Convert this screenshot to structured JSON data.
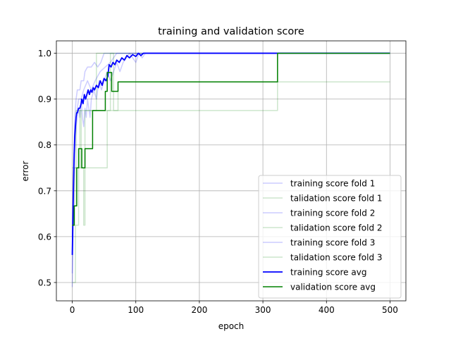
{
  "chart_data": {
    "type": "line",
    "title": "training and validation score",
    "xlabel": "epoch",
    "ylabel": "error",
    "xlim": [
      -25,
      525
    ],
    "ylim": [
      0.46,
      1.027
    ],
    "xticks": [
      0,
      100,
      200,
      300,
      400,
      500
    ],
    "yticks": [
      0.5,
      0.6,
      0.7,
      0.8,
      0.9,
      1.0
    ],
    "xtick_labels": [
      "0",
      "100",
      "200",
      "300",
      "400",
      "500"
    ],
    "ytick_labels": [
      "0.5",
      "0.6",
      "0.7",
      "0.8",
      "0.9",
      "1.0"
    ],
    "grid": true,
    "legend_position": "lower right",
    "series": [
      {
        "name": "training score fold 1",
        "color": "#0000ff",
        "alpha": 0.2,
        "linewidth": 1.5,
        "points": [
          [
            0,
            0.49
          ],
          [
            2,
            0.66
          ],
          [
            4,
            0.78
          ],
          [
            6,
            0.84
          ],
          [
            8,
            0.86
          ],
          [
            10,
            0.88
          ],
          [
            12,
            0.86
          ],
          [
            14,
            0.9
          ],
          [
            16,
            0.86
          ],
          [
            18,
            0.84
          ],
          [
            20,
            0.88
          ],
          [
            22,
            0.86
          ],
          [
            24,
            0.9
          ],
          [
            26,
            0.88
          ],
          [
            28,
            0.86
          ],
          [
            30,
            0.9
          ],
          [
            34,
            0.92
          ],
          [
            38,
            0.9
          ],
          [
            42,
            0.94
          ],
          [
            46,
            0.92
          ],
          [
            50,
            0.94
          ],
          [
            55,
            0.96
          ],
          [
            60,
            0.94
          ],
          [
            65,
            0.96
          ],
          [
            70,
            0.98
          ],
          [
            75,
            0.96
          ],
          [
            80,
            0.98
          ],
          [
            90,
            1.0
          ],
          [
            100,
            0.98
          ],
          [
            105,
            1.0
          ],
          [
            110,
            0.99
          ],
          [
            115,
            1.0
          ],
          [
            500,
            1.0
          ]
        ]
      },
      {
        "name": "talidation score fold 1",
        "color": "#008000",
        "alpha": 0.2,
        "linewidth": 1.5,
        "points": [
          [
            0,
            0.5
          ],
          [
            5,
            0.5
          ],
          [
            5,
            0.625
          ],
          [
            10,
            0.625
          ],
          [
            10,
            0.75
          ],
          [
            18,
            0.75
          ],
          [
            18,
            0.625
          ],
          [
            20,
            0.625
          ],
          [
            20,
            0.75
          ],
          [
            55,
            0.75
          ],
          [
            55,
            0.875
          ],
          [
            323,
            0.875
          ],
          [
            323,
            1.0
          ],
          [
            500,
            1.0
          ]
        ]
      },
      {
        "name": "training score fold 2",
        "color": "#0000ff",
        "alpha": 0.2,
        "linewidth": 1.5,
        "points": [
          [
            0,
            0.52
          ],
          [
            2,
            0.72
          ],
          [
            4,
            0.86
          ],
          [
            6,
            0.9
          ],
          [
            8,
            0.92
          ],
          [
            12,
            0.92
          ],
          [
            14,
            0.94
          ],
          [
            18,
            0.94
          ],
          [
            20,
            0.96
          ],
          [
            24,
            0.97
          ],
          [
            30,
            0.97
          ],
          [
            35,
            0.98
          ],
          [
            40,
            0.97
          ],
          [
            45,
            0.98
          ],
          [
            50,
            1.0
          ],
          [
            500,
            1.0
          ]
        ]
      },
      {
        "name": "talidation score fold 2",
        "color": "#008000",
        "alpha": 0.2,
        "linewidth": 1.5,
        "points": [
          [
            0,
            0.625
          ],
          [
            4,
            0.625
          ],
          [
            4,
            0.75
          ],
          [
            12,
            0.75
          ],
          [
            12,
            0.875
          ],
          [
            38,
            0.875
          ],
          [
            38,
            1.0
          ],
          [
            500,
            1.0
          ]
        ]
      },
      {
        "name": "training score fold 3",
        "color": "#0000ff",
        "alpha": 0.2,
        "linewidth": 1.5,
        "points": [
          [
            0,
            0.6
          ],
          [
            2,
            0.76
          ],
          [
            4,
            0.84
          ],
          [
            6,
            0.86
          ],
          [
            8,
            0.88
          ],
          [
            10,
            0.9
          ],
          [
            14,
            0.9
          ],
          [
            18,
            0.92
          ],
          [
            24,
            0.94
          ],
          [
            30,
            0.92
          ],
          [
            36,
            0.94
          ],
          [
            44,
            0.96
          ],
          [
            52,
            0.97
          ],
          [
            60,
            0.98
          ],
          [
            70,
            1.0
          ],
          [
            500,
            1.0
          ]
        ]
      },
      {
        "name": "talidation score fold 3",
        "color": "#008000",
        "alpha": 0.2,
        "linewidth": 1.5,
        "points": [
          [
            0,
            0.75
          ],
          [
            6,
            0.75
          ],
          [
            6,
            0.875
          ],
          [
            14,
            0.875
          ],
          [
            14,
            0.75
          ],
          [
            20,
            0.75
          ],
          [
            20,
            0.875
          ],
          [
            60,
            0.875
          ],
          [
            60,
            1.0
          ],
          [
            65,
            1.0
          ],
          [
            65,
            0.875
          ],
          [
            72,
            0.875
          ],
          [
            72,
            0.9375
          ],
          [
            500,
            0.9375
          ]
        ]
      },
      {
        "name": "training score avg",
        "color": "#0000ff",
        "alpha": 1.0,
        "linewidth": 1.8,
        "points": [
          [
            0,
            0.56
          ],
          [
            1,
            0.64
          ],
          [
            2,
            0.72
          ],
          [
            3,
            0.78
          ],
          [
            4,
            0.82
          ],
          [
            5,
            0.84
          ],
          [
            6,
            0.86
          ],
          [
            7,
            0.87
          ],
          [
            8,
            0.87
          ],
          [
            9,
            0.875
          ],
          [
            10,
            0.88
          ],
          [
            12,
            0.88
          ],
          [
            14,
            0.89
          ],
          [
            15,
            0.9
          ],
          [
            17,
            0.89
          ],
          [
            19,
            0.91
          ],
          [
            21,
            0.9
          ],
          [
            23,
            0.91
          ],
          [
            25,
            0.92
          ],
          [
            27,
            0.91
          ],
          [
            29,
            0.92
          ],
          [
            31,
            0.915
          ],
          [
            33,
            0.925
          ],
          [
            35,
            0.92
          ],
          [
            38,
            0.93
          ],
          [
            41,
            0.925
          ],
          [
            44,
            0.94
          ],
          [
            47,
            0.93
          ],
          [
            50,
            0.945
          ],
          [
            53,
            0.94
          ],
          [
            56,
            0.95
          ],
          [
            58,
            0.975
          ],
          [
            61,
            0.97
          ],
          [
            64,
            0.98
          ],
          [
            67,
            0.975
          ],
          [
            70,
            0.985
          ],
          [
            74,
            0.98
          ],
          [
            78,
            0.99
          ],
          [
            82,
            0.985
          ],
          [
            86,
            0.995
          ],
          [
            90,
            0.99
          ],
          [
            95,
            0.997
          ],
          [
            100,
            0.993
          ],
          [
            104,
            1.0
          ],
          [
            108,
            0.995
          ],
          [
            112,
            1.0
          ],
          [
            500,
            1.0
          ]
        ]
      },
      {
        "name": "validation score avg",
        "color": "#008000",
        "alpha": 1.0,
        "linewidth": 1.5,
        "points": [
          [
            0,
            0.625
          ],
          [
            3,
            0.625
          ],
          [
            3,
            0.667
          ],
          [
            7,
            0.667
          ],
          [
            7,
            0.75
          ],
          [
            10,
            0.75
          ],
          [
            10,
            0.792
          ],
          [
            15,
            0.792
          ],
          [
            15,
            0.75
          ],
          [
            20,
            0.75
          ],
          [
            20,
            0.792
          ],
          [
            32,
            0.792
          ],
          [
            32,
            0.875
          ],
          [
            52,
            0.875
          ],
          [
            52,
            0.917
          ],
          [
            55,
            0.917
          ],
          [
            55,
            0.958
          ],
          [
            62,
            0.958
          ],
          [
            62,
            0.917
          ],
          [
            72,
            0.917
          ],
          [
            72,
            0.9375
          ],
          [
            323,
            0.9375
          ],
          [
            323,
            1.0
          ],
          [
            500,
            1.0
          ]
        ]
      }
    ]
  }
}
